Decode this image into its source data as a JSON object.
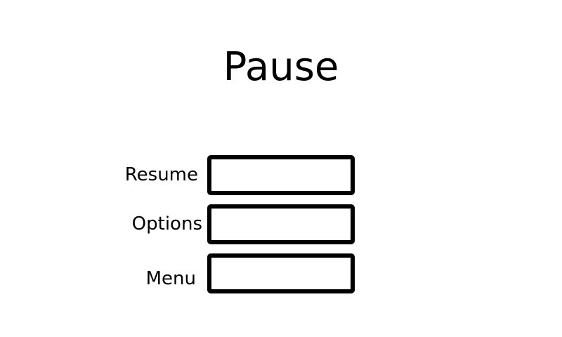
{
  "screen": {
    "title": "Pause"
  },
  "menu": {
    "items": [
      {
        "label": "Resume"
      },
      {
        "label": "Options"
      },
      {
        "label": "Menu"
      }
    ]
  },
  "colors": {
    "background": "#ffffff",
    "foreground": "#000000"
  }
}
